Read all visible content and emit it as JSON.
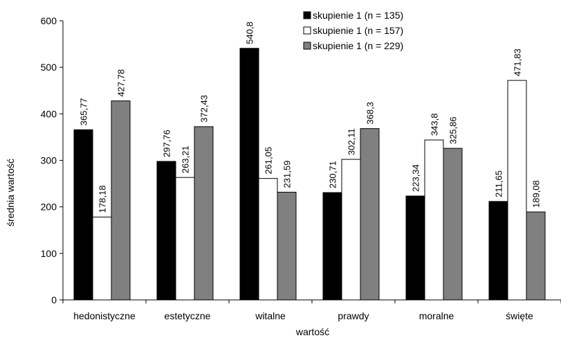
{
  "chart_data": {
    "type": "bar",
    "title": "",
    "xlabel": "wartość",
    "ylabel": "średnia wartość",
    "ylim": [
      0,
      600
    ],
    "yticks": [
      0,
      100,
      200,
      300,
      400,
      500,
      600
    ],
    "grid": false,
    "legend_position": "top-right",
    "categories": [
      "hedonistyczne",
      "estetyczne",
      "witalne",
      "prawdy",
      "moralne",
      "święte"
    ],
    "series": [
      {
        "name": "skupienie 1 (n = 135)",
        "color": "#000000",
        "values": [
          365.77,
          297.76,
          540.8,
          230.71,
          223.34,
          211.65
        ],
        "labels": [
          "365,77",
          "297,76",
          "540,8",
          "230,71",
          "223,34",
          "211,65"
        ]
      },
      {
        "name": "skupienie 1 (n = 157)",
        "color": "#ffffff",
        "values": [
          178.18,
          263.21,
          261.05,
          302.11,
          343.8,
          471.83
        ],
        "labels": [
          "178,18",
          "263,21",
          "261,05",
          "302,11",
          "343,8",
          "471,83"
        ]
      },
      {
        "name": "skupienie 1 (n = 229)",
        "color": "#808080",
        "values": [
          427.78,
          372.43,
          231.59,
          368.3,
          325.86,
          189.08
        ],
        "labels": [
          "427,78",
          "372,43",
          "231,59",
          "368,3",
          "325,86",
          "189,08"
        ]
      }
    ]
  }
}
